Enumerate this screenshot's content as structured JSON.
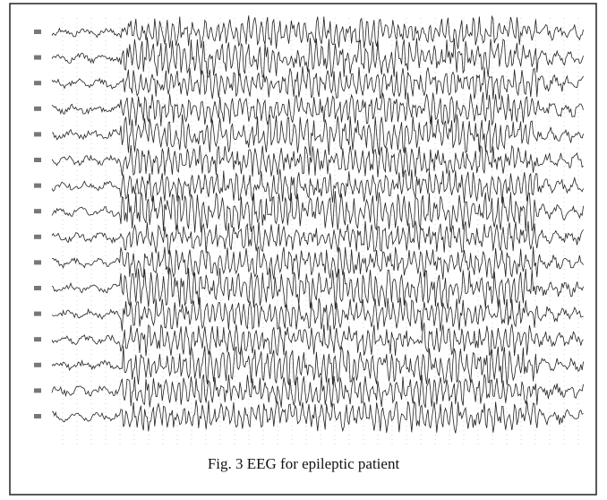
{
  "figure": {
    "caption": "Fig. 3 EEG for epileptic patient"
  }
}
